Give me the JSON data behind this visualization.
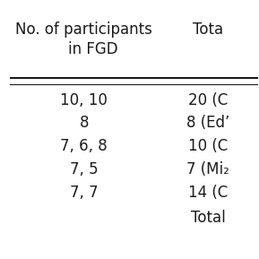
{
  "col1_header": "No. of participants\n    in FGD",
  "col2_header": "Tota",
  "rows": [
    [
      "10, 10",
      "20 (C"
    ],
    [
      "8",
      "8 (Ed’"
    ],
    [
      "7, 6, 8",
      "10 (C"
    ],
    [
      "7, 5",
      "7 (Mi₂"
    ],
    [
      "7, 7",
      "14 (C"
    ],
    [
      "",
      "Total"
    ]
  ],
  "bg_color": "#ffffff",
  "text_color": "#1a1a1a",
  "header_fontsize": 12,
  "row_fontsize": 12,
  "figsize": [
    2.89,
    2.89
  ],
  "dpi": 100
}
